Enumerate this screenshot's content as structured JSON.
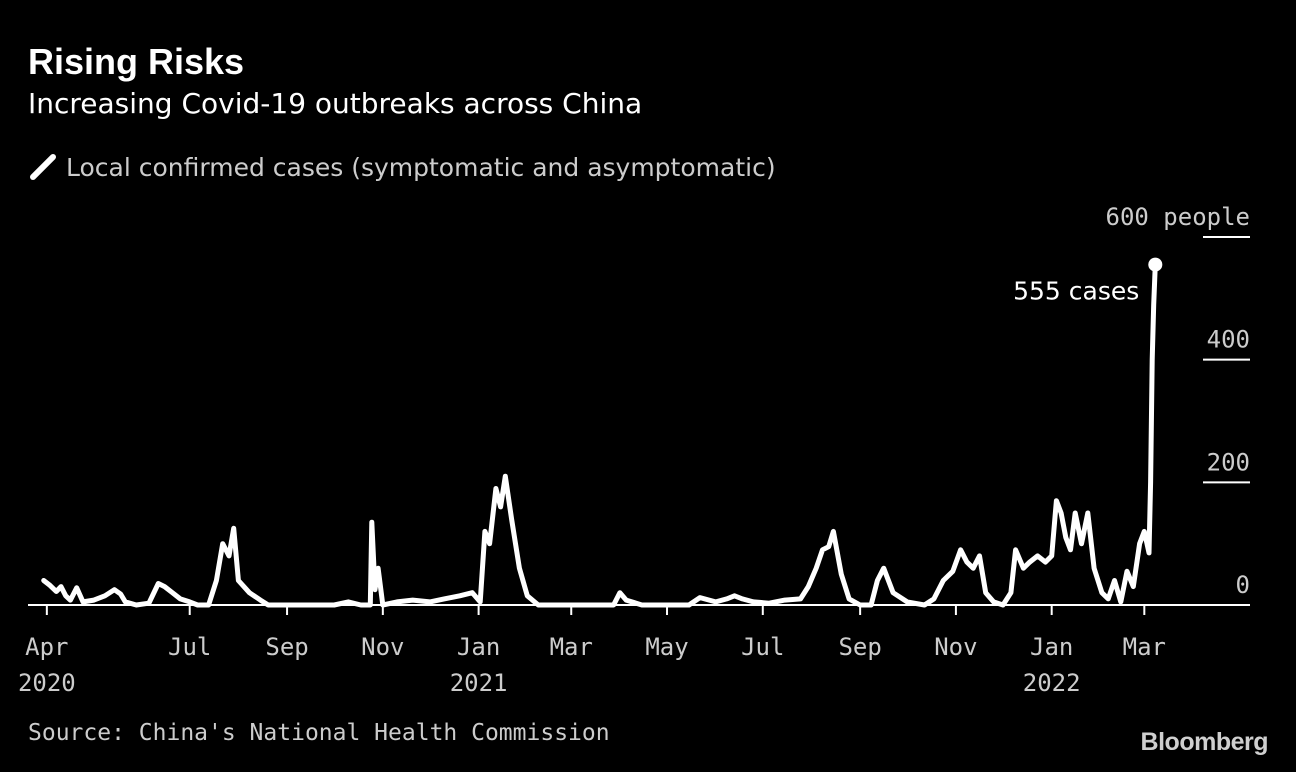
{
  "chart_data": {
    "type": "line",
    "title": "Rising Risks",
    "subtitle": "Increasing Covid-19 outbreaks across China",
    "series": [
      {
        "name": "Local confirmed cases (symptomatic and asymptomatic)",
        "color": "#ffffff",
        "points": [
          [
            "2020-03-30",
            40
          ],
          [
            "2020-04-03",
            32
          ],
          [
            "2020-04-07",
            22
          ],
          [
            "2020-04-10",
            30
          ],
          [
            "2020-04-13",
            15
          ],
          [
            "2020-04-16",
            8
          ],
          [
            "2020-04-20",
            28
          ],
          [
            "2020-04-24",
            5
          ],
          [
            "2020-05-01",
            8
          ],
          [
            "2020-05-08",
            15
          ],
          [
            "2020-05-14",
            25
          ],
          [
            "2020-05-18",
            18
          ],
          [
            "2020-05-21",
            5
          ],
          [
            "2020-05-28",
            0
          ],
          [
            "2020-06-05",
            3
          ],
          [
            "2020-06-11",
            35
          ],
          [
            "2020-06-15",
            30
          ],
          [
            "2020-06-20",
            20
          ],
          [
            "2020-06-25",
            10
          ],
          [
            "2020-07-01",
            5
          ],
          [
            "2020-07-06",
            0
          ],
          [
            "2020-07-13",
            0
          ],
          [
            "2020-07-18",
            40
          ],
          [
            "2020-07-22",
            100
          ],
          [
            "2020-07-26",
            80
          ],
          [
            "2020-07-29",
            125
          ],
          [
            "2020-08-01",
            40
          ],
          [
            "2020-08-08",
            20
          ],
          [
            "2020-08-15",
            8
          ],
          [
            "2020-08-20",
            0
          ],
          [
            "2020-09-01",
            0
          ],
          [
            "2020-09-15",
            0
          ],
          [
            "2020-10-01",
            0
          ],
          [
            "2020-10-10",
            5
          ],
          [
            "2020-10-18",
            0
          ],
          [
            "2020-10-24",
            0
          ],
          [
            "2020-10-25",
            135
          ],
          [
            "2020-10-27",
            25
          ],
          [
            "2020-10-29",
            60
          ],
          [
            "2020-11-01",
            0
          ],
          [
            "2020-11-10",
            5
          ],
          [
            "2020-11-20",
            8
          ],
          [
            "2020-12-01",
            5
          ],
          [
            "2020-12-10",
            10
          ],
          [
            "2020-12-20",
            15
          ],
          [
            "2020-12-28",
            20
          ],
          [
            "2021-01-02",
            5
          ],
          [
            "2021-01-05",
            120
          ],
          [
            "2021-01-08",
            100
          ],
          [
            "2021-01-12",
            190
          ],
          [
            "2021-01-15",
            160
          ],
          [
            "2021-01-18",
            210
          ],
          [
            "2021-01-22",
            140
          ],
          [
            "2021-01-27",
            60
          ],
          [
            "2021-02-01",
            15
          ],
          [
            "2021-02-08",
            0
          ],
          [
            "2021-02-20",
            0
          ],
          [
            "2021-03-10",
            0
          ],
          [
            "2021-03-28",
            0
          ],
          [
            "2021-04-01",
            20
          ],
          [
            "2021-04-05",
            8
          ],
          [
            "2021-04-15",
            0
          ],
          [
            "2021-05-01",
            0
          ],
          [
            "2021-05-15",
            0
          ],
          [
            "2021-05-22",
            12
          ],
          [
            "2021-06-01",
            5
          ],
          [
            "2021-06-08",
            10
          ],
          [
            "2021-06-13",
            15
          ],
          [
            "2021-06-18",
            10
          ],
          [
            "2021-06-25",
            5
          ],
          [
            "2021-07-05",
            3
          ],
          [
            "2021-07-15",
            8
          ],
          [
            "2021-07-25",
            10
          ],
          [
            "2021-07-30",
            30
          ],
          [
            "2021-08-04",
            60
          ],
          [
            "2021-08-08",
            90
          ],
          [
            "2021-08-12",
            95
          ],
          [
            "2021-08-15",
            120
          ],
          [
            "2021-08-20",
            50
          ],
          [
            "2021-08-25",
            10
          ],
          [
            "2021-09-01",
            0
          ],
          [
            "2021-09-08",
            0
          ],
          [
            "2021-09-12",
            40
          ],
          [
            "2021-09-16",
            60
          ],
          [
            "2021-09-22",
            20
          ],
          [
            "2021-10-01",
            5
          ],
          [
            "2021-10-12",
            0
          ],
          [
            "2021-10-18",
            10
          ],
          [
            "2021-10-24",
            40
          ],
          [
            "2021-10-30",
            55
          ],
          [
            "2021-11-04",
            90
          ],
          [
            "2021-11-08",
            70
          ],
          [
            "2021-11-12",
            60
          ],
          [
            "2021-11-16",
            80
          ],
          [
            "2021-11-20",
            20
          ],
          [
            "2021-11-25",
            5
          ],
          [
            "2021-12-01",
            0
          ],
          [
            "2021-12-06",
            20
          ],
          [
            "2021-12-09",
            90
          ],
          [
            "2021-12-14",
            60
          ],
          [
            "2021-12-18",
            70
          ],
          [
            "2021-12-23",
            80
          ],
          [
            "2021-12-28",
            70
          ],
          [
            "2022-01-01",
            80
          ],
          [
            "2022-01-04",
            170
          ],
          [
            "2022-01-07",
            150
          ],
          [
            "2022-01-10",
            110
          ],
          [
            "2022-01-13",
            90
          ],
          [
            "2022-01-16",
            150
          ],
          [
            "2022-01-20",
            100
          ],
          [
            "2022-01-24",
            150
          ],
          [
            "2022-01-28",
            60
          ],
          [
            "2022-02-02",
            20
          ],
          [
            "2022-02-06",
            10
          ],
          [
            "2022-02-10",
            40
          ],
          [
            "2022-02-14",
            5
          ],
          [
            "2022-02-18",
            55
          ],
          [
            "2022-02-22",
            30
          ],
          [
            "2022-02-26",
            100
          ],
          [
            "2022-03-01",
            120
          ],
          [
            "2022-03-04",
            85
          ],
          [
            "2022-03-05",
            200
          ],
          [
            "2022-03-06",
            400
          ],
          [
            "2022-03-07",
            490
          ],
          [
            "2022-03-08",
            555
          ]
        ]
      }
    ],
    "x_axis": {
      "type": "date",
      "range": [
        "2020-03-20",
        "2022-03-25"
      ],
      "ticks": [
        {
          "date": "2020-04-01",
          "label": "Apr",
          "year": "2020"
        },
        {
          "date": "2020-07-01",
          "label": "Jul",
          "year": ""
        },
        {
          "date": "2020-09-01",
          "label": "Sep",
          "year": ""
        },
        {
          "date": "2020-11-01",
          "label": "Nov",
          "year": ""
        },
        {
          "date": "2021-01-01",
          "label": "Jan",
          "year": "2021"
        },
        {
          "date": "2021-03-01",
          "label": "Mar",
          "year": ""
        },
        {
          "date": "2021-05-01",
          "label": "May",
          "year": ""
        },
        {
          "date": "2021-07-01",
          "label": "Jul",
          "year": ""
        },
        {
          "date": "2021-09-01",
          "label": "Sep",
          "year": ""
        },
        {
          "date": "2021-11-01",
          "label": "Nov",
          "year": ""
        },
        {
          "date": "2022-01-01",
          "label": "Jan",
          "year": "2022"
        },
        {
          "date": "2022-03-01",
          "label": "Mar",
          "year": ""
        }
      ]
    },
    "y_axis": {
      "range": [
        0,
        600
      ],
      "position": "right",
      "ticks": [
        {
          "value": 0,
          "label": "0"
        },
        {
          "value": 200,
          "label": "200"
        },
        {
          "value": 400,
          "label": "400"
        },
        {
          "value": 600,
          "label": "600 people"
        }
      ]
    },
    "grid": false,
    "legend": "top-left",
    "annotations": [
      {
        "date": "2022-03-08",
        "value": 555,
        "text": "555 cases"
      }
    ]
  },
  "source": "Source: China's National Health Commission",
  "brand": "Bloomberg",
  "colors": {
    "background": "#000000",
    "line": "#ffffff",
    "text": "#ffffff",
    "muted_text": "#cccccc"
  }
}
